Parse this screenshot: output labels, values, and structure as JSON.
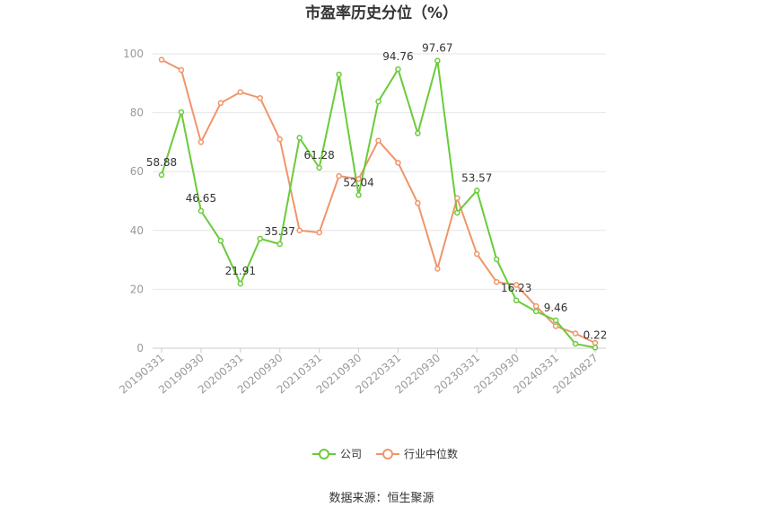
{
  "chart_data": {
    "type": "line",
    "title": "市盈率历史分位（%）",
    "source": "数据来源：恒生聚源",
    "ylim": [
      0,
      100
    ],
    "yticks": [
      0,
      20,
      40,
      60,
      80,
      100
    ],
    "grid": true,
    "legend_position": "bottom",
    "x": [
      "20190331",
      "20190630",
      "20190930",
      "20191231",
      "20200331",
      "20200630",
      "20200930",
      "20201231",
      "20210331",
      "20210630",
      "20210930",
      "20211231",
      "20220331",
      "20220630",
      "20220930",
      "20221231",
      "20230331",
      "20230630",
      "20230930",
      "20231231",
      "20240331",
      "20240630",
      "20240827"
    ],
    "x_tick_labels": [
      "20190331",
      "20190930",
      "20200331",
      "20200930",
      "20210331",
      "20210930",
      "20220331",
      "20220930",
      "20230331",
      "20230930",
      "20240331",
      "20240827"
    ],
    "series": [
      {
        "name": "公司",
        "color": "#6acb3a",
        "values": [
          58.88,
          80.2,
          46.65,
          36.5,
          21.91,
          37.2,
          35.37,
          71.5,
          61.28,
          93.0,
          52.04,
          83.8,
          94.76,
          73.0,
          97.67,
          46.0,
          53.57,
          30.2,
          16.23,
          12.5,
          9.46,
          1.5,
          0.22
        ],
        "labels": {
          "0": "58.88",
          "2": "46.65",
          "4": "21.91",
          "6": "35.37",
          "8": "61.28",
          "10": "52.04",
          "12": "94.76",
          "14": "97.67",
          "16": "53.57",
          "18": "16.23",
          "20": "9.46",
          "22": "0.22"
        }
      },
      {
        "name": "行业中位数",
        "color": "#f0956a",
        "values": [
          98.0,
          94.5,
          70.0,
          83.3,
          87.0,
          85.0,
          71.0,
          40.0,
          39.3,
          58.5,
          57.5,
          70.5,
          63.0,
          49.3,
          27.0,
          51.0,
          32.0,
          22.5,
          21.5,
          14.3,
          7.5,
          5.0,
          1.8
        ]
      }
    ]
  }
}
